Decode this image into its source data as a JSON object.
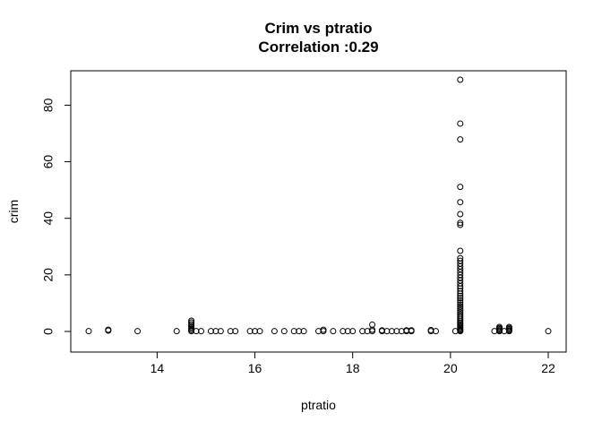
{
  "chart_data": {
    "type": "scatter",
    "title": "Crim vs ptratio",
    "subtitle": "Correlation :0.29",
    "xlabel": "ptratio",
    "ylabel": "crim",
    "xlim": [
      12.6,
      22.0
    ],
    "ylim": [
      0,
      89
    ],
    "xticks": [
      14,
      16,
      18,
      20,
      22
    ],
    "yticks": [
      0,
      20,
      40,
      60,
      80
    ],
    "grid": false,
    "points": [
      [
        12.6,
        0.1
      ],
      [
        13.0,
        0.3
      ],
      [
        13.0,
        0.6
      ],
      [
        13.6,
        0.1
      ],
      [
        14.4,
        0.1
      ],
      [
        14.7,
        0.1
      ],
      [
        14.7,
        0.5
      ],
      [
        14.7,
        1.0
      ],
      [
        14.7,
        1.5
      ],
      [
        14.7,
        2.0
      ],
      [
        14.7,
        2.6
      ],
      [
        14.7,
        3.2
      ],
      [
        14.7,
        3.8
      ],
      [
        14.8,
        0.1
      ],
      [
        14.9,
        0.1
      ],
      [
        15.1,
        0.1
      ],
      [
        15.2,
        0.1
      ],
      [
        15.3,
        0.1
      ],
      [
        15.5,
        0.1
      ],
      [
        15.6,
        0.1
      ],
      [
        15.9,
        0.1
      ],
      [
        16.0,
        0.1
      ],
      [
        16.1,
        0.1
      ],
      [
        16.4,
        0.1
      ],
      [
        16.6,
        0.1
      ],
      [
        16.8,
        0.1
      ],
      [
        16.9,
        0.1
      ],
      [
        17.0,
        0.1
      ],
      [
        17.3,
        0.1
      ],
      [
        17.4,
        0.1
      ],
      [
        17.4,
        0.6
      ],
      [
        17.6,
        0.1
      ],
      [
        17.8,
        0.1
      ],
      [
        17.9,
        0.1
      ],
      [
        18.0,
        0.1
      ],
      [
        18.2,
        0.1
      ],
      [
        18.3,
        0.1
      ],
      [
        18.4,
        0.1
      ],
      [
        18.4,
        0.6
      ],
      [
        18.4,
        2.4
      ],
      [
        18.6,
        0.1
      ],
      [
        18.6,
        0.4
      ],
      [
        18.7,
        0.1
      ],
      [
        18.8,
        0.1
      ],
      [
        18.9,
        0.1
      ],
      [
        19.0,
        0.1
      ],
      [
        19.1,
        0.1
      ],
      [
        19.1,
        0.4
      ],
      [
        19.2,
        0.1
      ],
      [
        19.2,
        0.4
      ],
      [
        19.6,
        0.1
      ],
      [
        19.6,
        0.5
      ],
      [
        19.7,
        0.1
      ],
      [
        20.1,
        0.1
      ],
      [
        20.2,
        0.1
      ],
      [
        20.2,
        0.4
      ],
      [
        20.2,
        0.8
      ],
      [
        20.2,
        1.2
      ],
      [
        20.2,
        1.6
      ],
      [
        20.2,
        2.0
      ],
      [
        20.2,
        2.5
      ],
      [
        20.2,
        3.0
      ],
      [
        20.2,
        3.6
      ],
      [
        20.2,
        4.2
      ],
      [
        20.2,
        4.8
      ],
      [
        20.2,
        5.4
      ],
      [
        20.2,
        6.0
      ],
      [
        20.2,
        6.7
      ],
      [
        20.2,
        7.4
      ],
      [
        20.2,
        8.1
      ],
      [
        20.2,
        8.8
      ],
      [
        20.2,
        9.5
      ],
      [
        20.2,
        10.2
      ],
      [
        20.2,
        11.0
      ],
      [
        20.2,
        11.8
      ],
      [
        20.2,
        12.6
      ],
      [
        20.2,
        13.4
      ],
      [
        20.2,
        14.3
      ],
      [
        20.2,
        15.2
      ],
      [
        20.2,
        16.0
      ],
      [
        20.2,
        17.0
      ],
      [
        20.2,
        18.0
      ],
      [
        20.2,
        19.0
      ],
      [
        20.2,
        20.0
      ],
      [
        20.2,
        21.0
      ],
      [
        20.2,
        22.0
      ],
      [
        20.2,
        23.0
      ],
      [
        20.2,
        24.0
      ],
      [
        20.2,
        25.0
      ],
      [
        20.2,
        25.9
      ],
      [
        20.2,
        28.5
      ],
      [
        20.2,
        37.7
      ],
      [
        20.2,
        38.4
      ],
      [
        20.2,
        41.5
      ],
      [
        20.2,
        45.7
      ],
      [
        20.2,
        51.1
      ],
      [
        20.2,
        67.9
      ],
      [
        20.2,
        73.5
      ],
      [
        20.2,
        89.0
      ],
      [
        20.9,
        0.1
      ],
      [
        21.0,
        0.1
      ],
      [
        21.0,
        0.4
      ],
      [
        21.0,
        0.8
      ],
      [
        21.0,
        1.2
      ],
      [
        21.0,
        1.6
      ],
      [
        21.1,
        0.1
      ],
      [
        21.2,
        0.1
      ],
      [
        21.2,
        0.4
      ],
      [
        21.2,
        0.8
      ],
      [
        21.2,
        1.2
      ],
      [
        21.2,
        1.6
      ],
      [
        22.0,
        0.1
      ]
    ]
  }
}
